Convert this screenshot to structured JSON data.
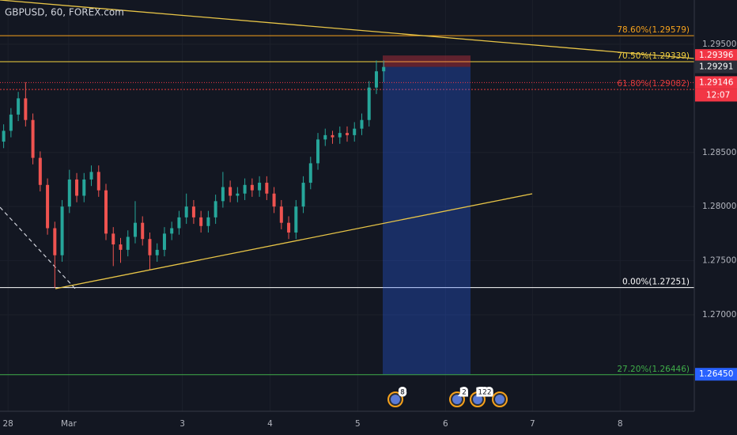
{
  "chart_data": {
    "type": "candlestick",
    "title": "GBPUSD, 60, FOREX.com",
    "up_color": "#26a69a",
    "down_color": "#ef5350",
    "grid": true,
    "x": [
      1,
      3,
      5,
      7,
      9,
      11,
      13,
      15,
      17,
      19,
      21,
      23,
      25,
      27,
      29,
      31,
      33,
      35,
      37,
      39,
      41,
      43,
      45,
      47,
      49,
      51,
      53,
      55,
      57,
      59,
      61,
      63,
      65,
      67,
      69,
      71,
      73,
      75,
      77,
      79,
      81,
      83,
      85,
      87,
      89,
      91,
      93,
      95,
      97,
      99,
      101,
      103,
      105
    ],
    "open": [
      1.286,
      1.287,
      1.2885,
      1.29,
      1.288,
      1.2845,
      1.282,
      1.278,
      1.2755,
      1.28,
      1.2825,
      1.281,
      1.2825,
      1.2832,
      1.2815,
      1.2775,
      1.2765,
      1.276,
      1.2772,
      1.2785,
      1.277,
      1.2755,
      1.276,
      1.2775,
      1.278,
      1.279,
      1.28,
      1.279,
      1.2782,
      1.279,
      1.2805,
      1.2818,
      1.281,
      1.2812,
      1.282,
      1.2815,
      1.2822,
      1.2812,
      1.28,
      1.2785,
      1.2776,
      1.28,
      1.2822,
      1.284,
      1.2862,
      1.2866,
      1.2864,
      1.2868,
      1.2866,
      1.2872,
      1.288,
      1.291,
      1.2925
    ],
    "high": [
      1.2876,
      1.2891,
      1.2906,
      1.2915,
      1.2886,
      1.2851,
      1.2826,
      1.2786,
      1.2806,
      1.2834,
      1.2831,
      1.2831,
      1.2838,
      1.2838,
      1.2821,
      1.2781,
      1.2771,
      1.2778,
      1.2805,
      1.2791,
      1.2776,
      1.2766,
      1.2781,
      1.2786,
      1.2796,
      1.2812,
      1.2806,
      1.2796,
      1.2796,
      1.2811,
      1.2832,
      1.2824,
      1.2818,
      1.2826,
      1.2826,
      1.2828,
      1.2828,
      1.2818,
      1.2806,
      1.2791,
      1.2806,
      1.2828,
      1.2846,
      1.2868,
      1.2872,
      1.287,
      1.2874,
      1.2874,
      1.2878,
      1.2886,
      1.2916,
      1.2935,
      1.2935
    ],
    "low": [
      1.2854,
      1.2864,
      1.2879,
      1.2874,
      1.2839,
      1.2814,
      1.2774,
      1.2725,
      1.2749,
      1.2794,
      1.2804,
      1.2804,
      1.2819,
      1.2809,
      1.2769,
      1.2745,
      1.2748,
      1.2754,
      1.2766,
      1.2764,
      1.2742,
      1.2749,
      1.2754,
      1.2769,
      1.2774,
      1.2784,
      1.2784,
      1.2776,
      1.2776,
      1.2784,
      1.2799,
      1.2804,
      1.2804,
      1.2806,
      1.2809,
      1.2809,
      1.2806,
      1.2794,
      1.2779,
      1.277,
      1.277,
      1.2794,
      1.2816,
      1.2834,
      1.2856,
      1.2858,
      1.2858,
      1.286,
      1.286,
      1.2866,
      1.2874,
      1.2904,
      1.2915
    ],
    "close": [
      1.287,
      1.2885,
      1.29,
      1.288,
      1.2845,
      1.282,
      1.278,
      1.2755,
      1.28,
      1.2825,
      1.281,
      1.2825,
      1.2832,
      1.2815,
      1.2775,
      1.2765,
      1.276,
      1.2772,
      1.2785,
      1.277,
      1.2755,
      1.276,
      1.2775,
      1.278,
      1.279,
      1.28,
      1.279,
      1.2782,
      1.279,
      1.2805,
      1.2818,
      1.281,
      1.2812,
      1.282,
      1.2815,
      1.2822,
      1.2812,
      1.28,
      1.2785,
      1.2776,
      1.28,
      1.2822,
      1.284,
      1.2862,
      1.2866,
      1.2864,
      1.2868,
      1.2866,
      1.2872,
      1.288,
      1.291,
      1.2925,
      1.2929
    ],
    "xlim": [
      0,
      190
    ],
    "ylim": [
      1.26108,
      1.29909
    ],
    "xticks": [
      {
        "value": 2.2,
        "label": "28"
      },
      {
        "value": 18.8,
        "label": "Mar"
      },
      {
        "value": 49.9,
        "label": "3"
      },
      {
        "value": 73.9,
        "label": "4"
      },
      {
        "value": 97.9,
        "label": "5"
      },
      {
        "value": 121.9,
        "label": "6"
      },
      {
        "value": 145.7,
        "label": "7"
      },
      {
        "value": 169.7,
        "label": "8"
      }
    ],
    "yticks": [
      {
        "value": 1.27,
        "label": "1.27000"
      },
      {
        "value": 1.275,
        "label": "1.27500"
      },
      {
        "value": 1.28,
        "label": "1.28000"
      },
      {
        "value": 1.285,
        "label": "1.28500"
      },
      {
        "value": 1.295,
        "label": "1.29500"
      }
    ],
    "fib_levels": [
      {
        "label": "78.60%(1.29579)",
        "value": 1.29579,
        "color": "#f7a21b"
      },
      {
        "label": "70.50%(1.29339)",
        "value": 1.29339,
        "color": "#f5d33d"
      },
      {
        "label": "61.80%(1.29082)",
        "value": 1.29082,
        "color": "#e03b3b"
      },
      {
        "label": "0.00%(1.27251)",
        "value": 1.27251,
        "color": "#ffffff"
      },
      {
        "label": "27.20%(1.26446)",
        "value": 1.26446,
        "color": "#3fae49"
      }
    ],
    "price_labels": [
      {
        "value": 1.29396,
        "color": "#f23645"
      },
      {
        "value": 1.29291,
        "color": "#2a2e39"
      },
      {
        "value": 1.29146,
        "color": "#f23645"
      },
      {
        "value": 1.2645,
        "label": "1.26450",
        "color": "#2962ff"
      }
    ],
    "countdown": "12:07",
    "events": [
      "8",
      "2",
      "122"
    ]
  }
}
